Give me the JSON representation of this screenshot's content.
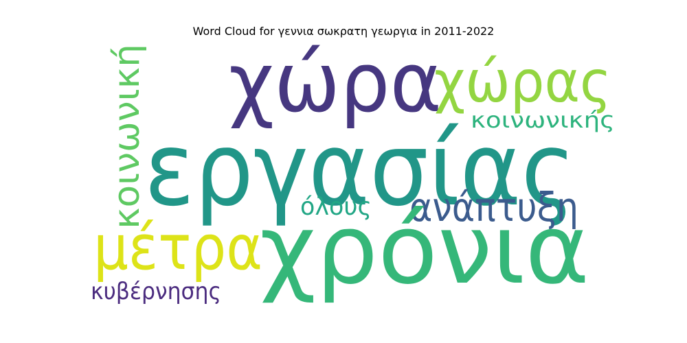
{
  "chart_data": {
    "type": "wordcloud",
    "title": "Word Cloud for γεννια σωκρατη γεωργια in 2011-2022",
    "words": [
      {
        "text": "χώρα",
        "color": "#463780"
      },
      {
        "text": "χώρας",
        "color": "#93d541"
      },
      {
        "text": "κοινωνικής",
        "color": "#2db37d"
      },
      {
        "text": "εργασίας",
        "color": "#219688"
      },
      {
        "text": "κοινωνική",
        "color": "#5ec962"
      },
      {
        "text": "όλους",
        "color": "#21a685"
      },
      {
        "text": "ανάπτυξη",
        "color": "#3b5b8d"
      },
      {
        "text": "μέτρα",
        "color": "#dde318"
      },
      {
        "text": "χρόνια",
        "color": "#35b779"
      },
      {
        "text": "κυβέρνησης",
        "color": "#4b2c7f"
      }
    ]
  }
}
